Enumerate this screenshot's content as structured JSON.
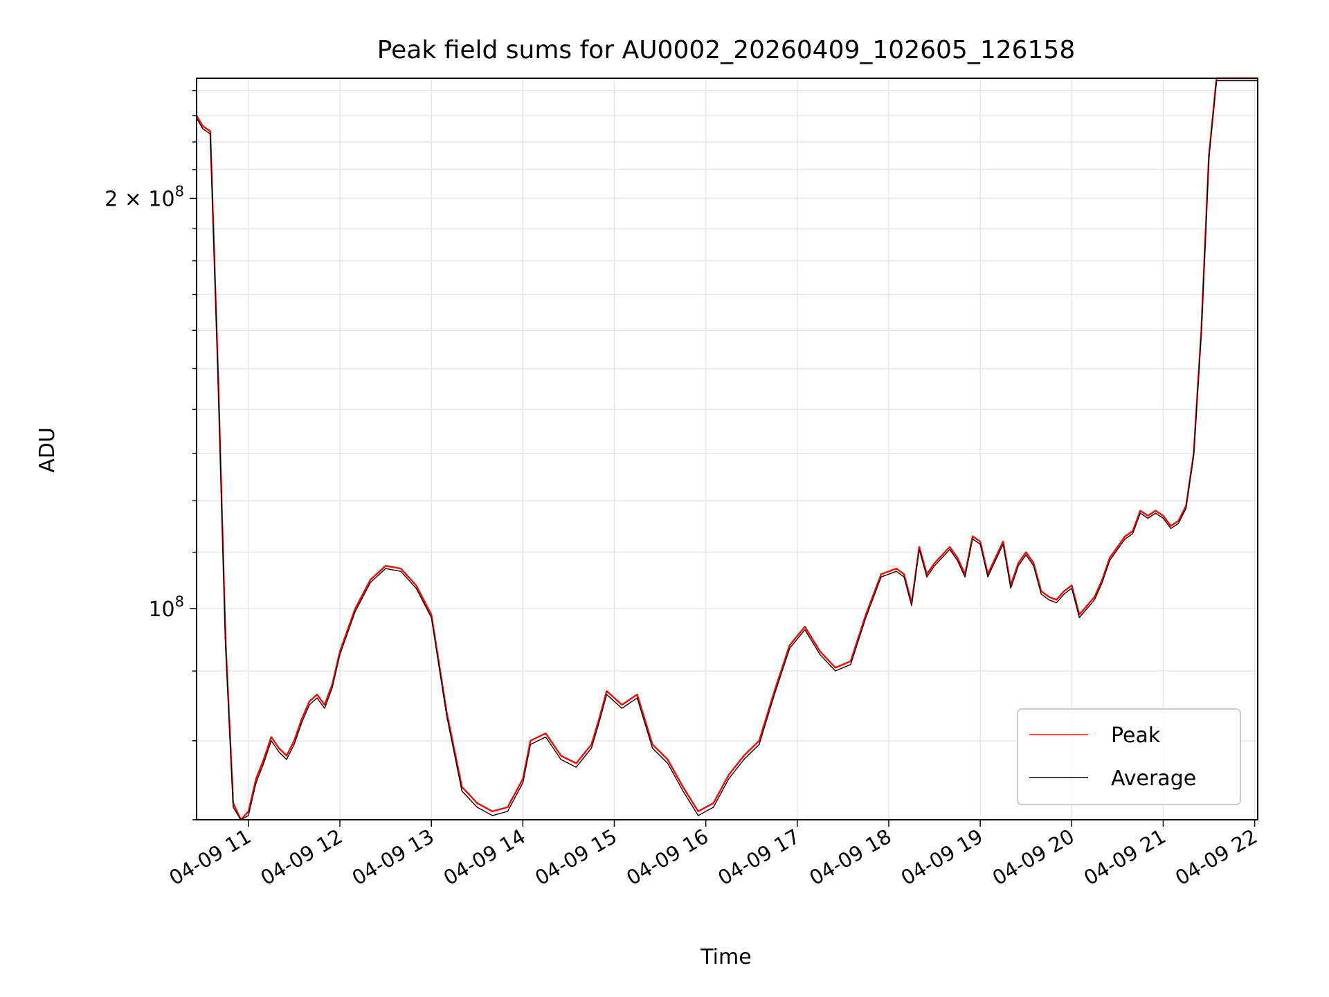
{
  "chart_data": {
    "type": "line",
    "title": "Peak field sums for AU0002_20260409_102605_126158",
    "xlabel": "Time",
    "ylabel": "ADU",
    "y_scale": "log",
    "grid": true,
    "legend_position": "lower right",
    "xlim": [
      "04-09 10:26",
      "04-09 22:02"
    ],
    "ylim": [
      70000000,
      245000000
    ],
    "x_ticks": [
      "04-09 11",
      "04-09 12",
      "04-09 13",
      "04-09 14",
      "04-09 15",
      "04-09 16",
      "04-09 17",
      "04-09 18",
      "04-09 19",
      "04-09 20",
      "04-09 21",
      "04-09 22"
    ],
    "y_ticks": [
      {
        "value": 100000000,
        "label_base": "10",
        "label_exp": "8",
        "label_coef": ""
      },
      {
        "value": 200000000,
        "label_base": "10",
        "label_exp": "8",
        "label_coef": "2 × "
      }
    ],
    "x": [
      "04-09 10:26",
      "04-09 10:30",
      "04-09 10:35",
      "04-09 10:40",
      "04-09 10:45",
      "04-09 10:50",
      "04-09 10:55",
      "04-09 11:00",
      "04-09 11:05",
      "04-09 11:10",
      "04-09 11:15",
      "04-09 11:20",
      "04-09 11:25",
      "04-09 11:30",
      "04-09 11:35",
      "04-09 11:40",
      "04-09 11:45",
      "04-09 11:50",
      "04-09 11:55",
      "04-09 12:00",
      "04-09 12:10",
      "04-09 12:20",
      "04-09 12:30",
      "04-09 12:40",
      "04-09 12:50",
      "04-09 13:00",
      "04-09 13:10",
      "04-09 13:20",
      "04-09 13:30",
      "04-09 13:40",
      "04-09 13:50",
      "04-09 14:00",
      "04-09 14:05",
      "04-09 14:15",
      "04-09 14:25",
      "04-09 14:35",
      "04-09 14:45",
      "04-09 14:50",
      "04-09 14:55",
      "04-09 15:05",
      "04-09 15:15",
      "04-09 15:25",
      "04-09 15:35",
      "04-09 15:45",
      "04-09 15:55",
      "04-09 16:05",
      "04-09 16:15",
      "04-09 16:25",
      "04-09 16:35",
      "04-09 16:45",
      "04-09 16:55",
      "04-09 17:05",
      "04-09 17:15",
      "04-09 17:25",
      "04-09 17:35",
      "04-09 17:45",
      "04-09 17:55",
      "04-09 18:05",
      "04-09 18:10",
      "04-09 18:15",
      "04-09 18:20",
      "04-09 18:25",
      "04-09 18:30",
      "04-09 18:40",
      "04-09 18:45",
      "04-09 18:50",
      "04-09 18:55",
      "04-09 19:00",
      "04-09 19:05",
      "04-09 19:10",
      "04-09 19:15",
      "04-09 19:20",
      "04-09 19:25",
      "04-09 19:30",
      "04-09 19:35",
      "04-09 19:40",
      "04-09 19:45",
      "04-09 19:50",
      "04-09 19:55",
      "04-09 20:00",
      "04-09 20:05",
      "04-09 20:15",
      "04-09 20:20",
      "04-09 20:25",
      "04-09 20:30",
      "04-09 20:35",
      "04-09 20:40",
      "04-09 20:45",
      "04-09 20:50",
      "04-09 20:55",
      "04-09 21:00",
      "04-09 21:05",
      "04-09 21:10",
      "04-09 21:15",
      "04-09 21:20",
      "04-09 21:25",
      "04-09 21:30",
      "04-09 21:35",
      "04-09 21:40",
      "04-09 21:45",
      "04-09 21:50",
      "04-09 21:55",
      "04-09 22:02"
    ],
    "series": [
      {
        "name": "Peak",
        "color": "#ff0000",
        "values": [
          230000000,
          226000000,
          224000000,
          150000000,
          95000000,
          72000000,
          69500000,
          71000000,
          75000000,
          77500000,
          80500000,
          79000000,
          78000000,
          80000000,
          83000000,
          85500000,
          86500000,
          85000000,
          88000000,
          93000000,
          100000000,
          105000000,
          107500000,
          107000000,
          104000000,
          99000000,
          84000000,
          74000000,
          72000000,
          71000000,
          71500000,
          75000000,
          80000000,
          81000000,
          78000000,
          77000000,
          79500000,
          83000000,
          87000000,
          85000000,
          86500000,
          79500000,
          77500000,
          74000000,
          71000000,
          72000000,
          75500000,
          78000000,
          80000000,
          87000000,
          94000000,
          97000000,
          93000000,
          90500000,
          91500000,
          99000000,
          106000000,
          107000000,
          106000000,
          101000000,
          111000000,
          106000000,
          108000000,
          111000000,
          109000000,
          106000000,
          113000000,
          112000000,
          106000000,
          109000000,
          112000000,
          104000000,
          108000000,
          110000000,
          108000000,
          103000000,
          102000000,
          101500000,
          103000000,
          104000000,
          99000000,
          102000000,
          105000000,
          109000000,
          111000000,
          113000000,
          114000000,
          118000000,
          117000000,
          118000000,
          117000000,
          115000000,
          116000000,
          119000000,
          130000000,
          160000000,
          215000000,
          245000000,
          245000000,
          245000000,
          245000000,
          245000000,
          245000000
        ]
      },
      {
        "name": "Average",
        "color": "#000000",
        "values": [
          229000000,
          225000000,
          223000000,
          149000000,
          94000000,
          71500000,
          69000000,
          70500000,
          74500000,
          77000000,
          80000000,
          78500000,
          77500000,
          79500000,
          82500000,
          85000000,
          86000000,
          84500000,
          87500000,
          92500000,
          99500000,
          104500000,
          107000000,
          106500000,
          103500000,
          98500000,
          83500000,
          73500000,
          71500000,
          70500000,
          71000000,
          74500000,
          79500000,
          80500000,
          77500000,
          76500000,
          79000000,
          82500000,
          86500000,
          84500000,
          86000000,
          79000000,
          77000000,
          73500000,
          70500000,
          71500000,
          75000000,
          77500000,
          79500000,
          86500000,
          93500000,
          96500000,
          92500000,
          90000000,
          91000000,
          98500000,
          105500000,
          106500000,
          105500000,
          100500000,
          110500000,
          105500000,
          107500000,
          110500000,
          108500000,
          105500000,
          112500000,
          111500000,
          105500000,
          108500000,
          111500000,
          103500000,
          107500000,
          109500000,
          107500000,
          102500000,
          101500000,
          101000000,
          102500000,
          103500000,
          98500000,
          101500000,
          104500000,
          108500000,
          110500000,
          112500000,
          113500000,
          117500000,
          116500000,
          117500000,
          116500000,
          114500000,
          115500000,
          118500000,
          129500000,
          159000000,
          214000000,
          244000000,
          244000000,
          244000000,
          244000000,
          244000000,
          244000000
        ]
      }
    ]
  }
}
